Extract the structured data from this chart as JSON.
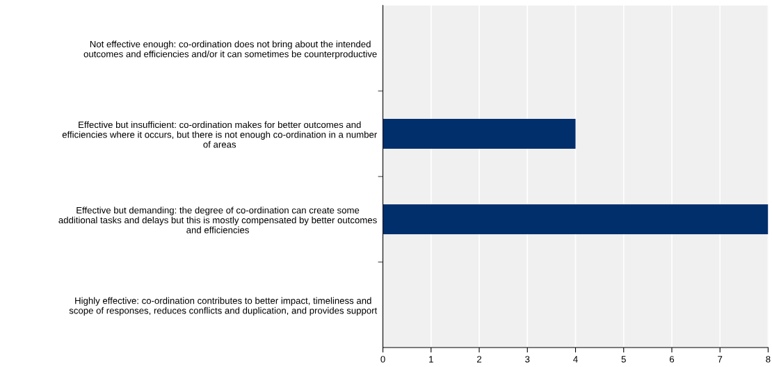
{
  "chart_data": {
    "type": "bar",
    "orientation": "horizontal",
    "categories": [
      "Not effective enough: co-ordination does not bring about the intended\noutcomes and efficiencies and/or it can sometimes be counterproductive",
      "Effective but insufficient: co-ordination makes for better outcomes and\nefficiencies where it occurs, but there is not enough co-ordination in a number\nof areas",
      "Effective but demanding: the degree of co-ordination can create some\nadditional tasks and delays but this is mostly compensated by better outcomes\nand efficiencies",
      "Highly effective: co-ordination contributes to better impact, timeliness and\nscope of responses, reduces conflicts and duplication, and provides support"
    ],
    "values": [
      0,
      4,
      8,
      0
    ],
    "color": "#002f6c",
    "xlim": [
      0,
      8
    ],
    "xticks": [
      0,
      1,
      2,
      3,
      4,
      5,
      6,
      7,
      8
    ],
    "grid": "x"
  }
}
